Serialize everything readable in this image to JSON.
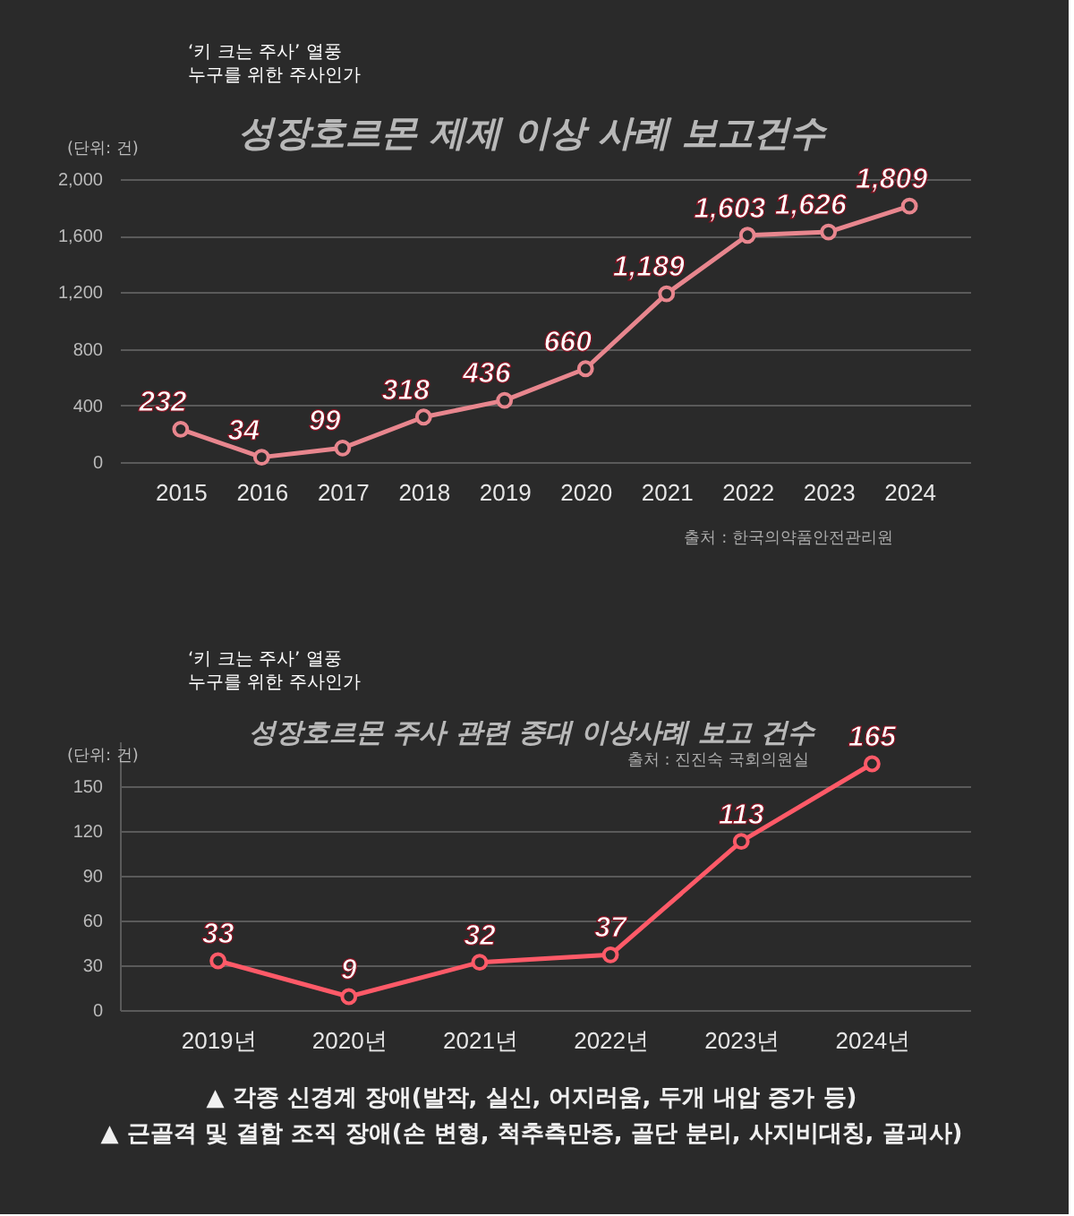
{
  "chart_data": [
    {
      "type": "line",
      "title": "성장호르몬 제제 이상 사례 보고건수",
      "ylabel": "(단위: 건)",
      "categories": [
        "2015",
        "2016",
        "2017",
        "2018",
        "2019",
        "2020",
        "2021",
        "2022",
        "2023",
        "2024"
      ],
      "series": [
        {
          "color": "#e8868e",
          "values": [
            232,
            34,
            99,
            318,
            436,
            660,
            1189,
            1603,
            1626,
            1809
          ],
          "value_labels": [
            "232",
            "34",
            "99",
            "318",
            "436",
            "660",
            "1,189",
            "1,603",
            "1,626",
            "1,809"
          ]
        }
      ],
      "ylim": [
        0,
        2000
      ],
      "yticks": [
        0,
        400,
        800,
        {
          "value": 1200,
          "label": "1,200"
        },
        {
          "value": 1600,
          "label": "1,600"
        },
        {
          "value": 2000,
          "label": "2,000"
        }
      ],
      "grid": "y",
      "marker": "circle",
      "line_style": "solid",
      "annotations": [
        "‘키 크는 주사’ 열풍",
        "누구를 위한 주사인가",
        "출처 : 한국의약품안전관리원"
      ]
    },
    {
      "type": "line",
      "title": "성장호르몬 주사 관련 중대 이상사례 보고 건수",
      "ylabel": "(단위: 건)",
      "categories": [
        "2019년",
        "2020년",
        "2021년",
        "2022년",
        "2023년",
        "2024년"
      ],
      "series": [
        {
          "color": "#ff5a68",
          "values": [
            33,
            9,
            32,
            37,
            113,
            165
          ]
        }
      ],
      "data_labels": true,
      "ylim": [
        0,
        180
      ],
      "yticks": [
        0,
        30,
        60,
        90,
        120,
        150
      ],
      "grid": "y",
      "marker": "circle",
      "line_style": "solid",
      "annotations": [
        "‘키 크는 주사’ 열풍",
        "누구를 위한 주사인가",
        "출처 : 진진숙 국회의원실",
        "▲ 각종 신경계 장애(발작, 실신, 어지러움, 두개 내압 증가 등)",
        "▲ 근골격 및 결합 조직 장애(손 변형, 척추측만증, 골단 분리, 사지비대칭, 골괴사)"
      ]
    }
  ]
}
